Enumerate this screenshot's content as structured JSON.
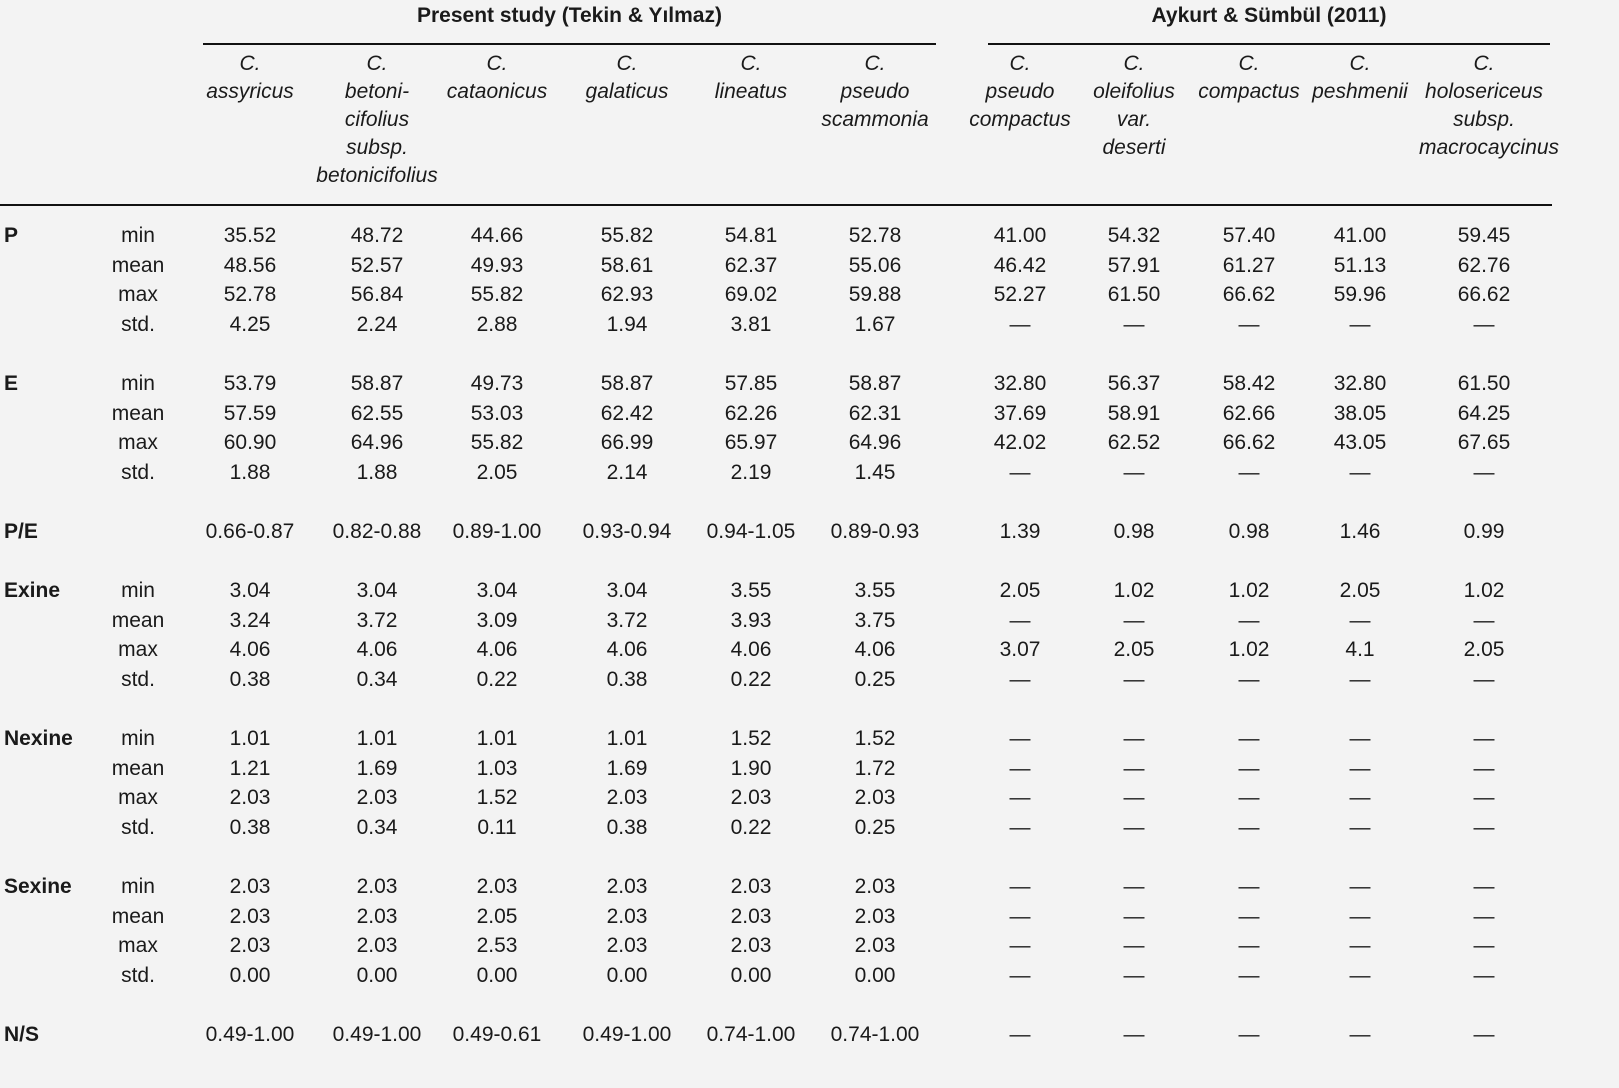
{
  "groups": [
    {
      "title": "Present study (Tekin & Yılmaz)"
    },
    {
      "title": "Aykurt & Sümbül (2011)"
    }
  ],
  "columns": [
    {
      "lines": [
        "C.",
        "assyricus"
      ]
    },
    {
      "lines": [
        "C.",
        "betoni-",
        "cifolius",
        "subsp.",
        "betonicifolius"
      ]
    },
    {
      "lines": [
        "C.",
        "cataonicus"
      ]
    },
    {
      "lines": [
        "C.",
        "galaticus"
      ]
    },
    {
      "lines": [
        "C.",
        "lineatus"
      ]
    },
    {
      "lines": [
        "C.",
        "pseudo",
        "scammonia"
      ]
    },
    {
      "lines": [
        "C.",
        "pseudo",
        "compactus"
      ]
    },
    {
      "lines": [
        "C.",
        "oleifolius",
        "var.",
        "deserti"
      ]
    },
    {
      "lines": [
        "C.",
        "compactus"
      ]
    },
    {
      "lines": [
        "C.",
        "peshmenii"
      ]
    },
    {
      "lines": [
        "C.",
        "holosericeus",
        "subsp.",
        "macrocaycinus"
      ]
    }
  ],
  "sections": [
    {
      "label": "P",
      "rows": [
        {
          "stat": "min",
          "values": [
            "35.52",
            "48.72",
            "44.66",
            "55.82",
            "54.81",
            "52.78",
            "41.00",
            "54.32",
            "57.40",
            "41.00",
            "59.45"
          ]
        },
        {
          "stat": "mean",
          "values": [
            "48.56",
            "52.57",
            "49.93",
            "58.61",
            "62.37",
            "55.06",
            "46.42",
            "57.91",
            "61.27",
            "51.13",
            "62.76"
          ]
        },
        {
          "stat": "max",
          "values": [
            "52.78",
            "56.84",
            "55.82",
            "62.93",
            "69.02",
            "59.88",
            "52.27",
            "61.50",
            "66.62",
            "59.96",
            "66.62"
          ]
        },
        {
          "stat": "std.",
          "values": [
            "4.25",
            "2.24",
            "2.88",
            "1.94",
            "3.81",
            "1.67",
            "—",
            "—",
            "—",
            "—",
            "—"
          ]
        }
      ]
    },
    {
      "label": "E",
      "rows": [
        {
          "stat": "min",
          "values": [
            "53.79",
            "58.87",
            "49.73",
            "58.87",
            "57.85",
            "58.87",
            "32.80",
            "56.37",
            "58.42",
            "32.80",
            "61.50"
          ]
        },
        {
          "stat": "mean",
          "values": [
            "57.59",
            "62.55",
            "53.03",
            "62.42",
            "62.26",
            "62.31",
            "37.69",
            "58.91",
            "62.66",
            "38.05",
            "64.25"
          ]
        },
        {
          "stat": "max",
          "values": [
            "60.90",
            "64.96",
            "55.82",
            "66.99",
            "65.97",
            "64.96",
            "42.02",
            "62.52",
            "66.62",
            "43.05",
            "67.65"
          ]
        },
        {
          "stat": "std.",
          "values": [
            "1.88",
            "1.88",
            "2.05",
            "2.14",
            "2.19",
            "1.45",
            "—",
            "—",
            "—",
            "—",
            "—"
          ]
        }
      ]
    },
    {
      "label": "P/E",
      "rows": [
        {
          "stat": "",
          "values": [
            "0.66-0.87",
            "0.82-0.88",
            "0.89-1.00",
            "0.93-0.94",
            "0.94-1.05",
            "0.89-0.93",
            "1.39",
            "0.98",
            "0.98",
            "1.46",
            "0.99"
          ]
        }
      ]
    },
    {
      "label": "Exine",
      "rows": [
        {
          "stat": "min",
          "values": [
            "3.04",
            "3.04",
            "3.04",
            "3.04",
            "3.55",
            "3.55",
            "2.05",
            "1.02",
            "1.02",
            "2.05",
            "1.02"
          ]
        },
        {
          "stat": "mean",
          "values": [
            "3.24",
            "3.72",
            "3.09",
            "3.72",
            "3.93",
            "3.75",
            "—",
            "—",
            "—",
            "—",
            "—"
          ]
        },
        {
          "stat": "max",
          "values": [
            "4.06",
            "4.06",
            "4.06",
            "4.06",
            "4.06",
            "4.06",
            "3.07",
            "2.05",
            "1.02",
            "4.1",
            "2.05"
          ]
        },
        {
          "stat": "std.",
          "values": [
            "0.38",
            "0.34",
            "0.22",
            "0.38",
            "0.22",
            "0.25",
            "—",
            "—",
            "—",
            "—",
            "—"
          ]
        }
      ]
    },
    {
      "label": "Nexine",
      "rows": [
        {
          "stat": "min",
          "values": [
            "1.01",
            "1.01",
            "1.01",
            "1.01",
            "1.52",
            "1.52",
            "—",
            "—",
            "—",
            "—",
            "—"
          ]
        },
        {
          "stat": "mean",
          "values": [
            "1.21",
            "1.69",
            "1.03",
            "1.69",
            "1.90",
            "1.72",
            "—",
            "—",
            "—",
            "—",
            "—"
          ]
        },
        {
          "stat": "max",
          "values": [
            "2.03",
            "2.03",
            "1.52",
            "2.03",
            "2.03",
            "2.03",
            "—",
            "—",
            "—",
            "—",
            "—"
          ]
        },
        {
          "stat": "std.",
          "values": [
            "0.38",
            "0.34",
            "0.11",
            "0.38",
            "0.22",
            "0.25",
            "—",
            "—",
            "—",
            "—",
            "—"
          ]
        }
      ]
    },
    {
      "label": "Sexine",
      "rows": [
        {
          "stat": "min",
          "values": [
            "2.03",
            "2.03",
            "2.03",
            "2.03",
            "2.03",
            "2.03",
            "—",
            "—",
            "—",
            "—",
            "—"
          ]
        },
        {
          "stat": "mean",
          "values": [
            "2.03",
            "2.03",
            "2.05",
            "2.03",
            "2.03",
            "2.03",
            "—",
            "—",
            "—",
            "—",
            "—"
          ]
        },
        {
          "stat": "max",
          "values": [
            "2.03",
            "2.03",
            "2.53",
            "2.03",
            "2.03",
            "2.03",
            "—",
            "—",
            "—",
            "—",
            "—"
          ]
        },
        {
          "stat": "std.",
          "values": [
            "0.00",
            "0.00",
            "0.00",
            "0.00",
            "0.00",
            "0.00",
            "—",
            "—",
            "—",
            "—",
            "—"
          ]
        }
      ]
    },
    {
      "label": "N/S",
      "rows": [
        {
          "stat": "",
          "values": [
            "0.49-1.00",
            "0.49-1.00",
            "0.49-0.61",
            "0.49-1.00",
            "0.74-1.00",
            "0.74-1.00",
            "—",
            "—",
            "—",
            "—",
            "—"
          ]
        }
      ]
    }
  ]
}
